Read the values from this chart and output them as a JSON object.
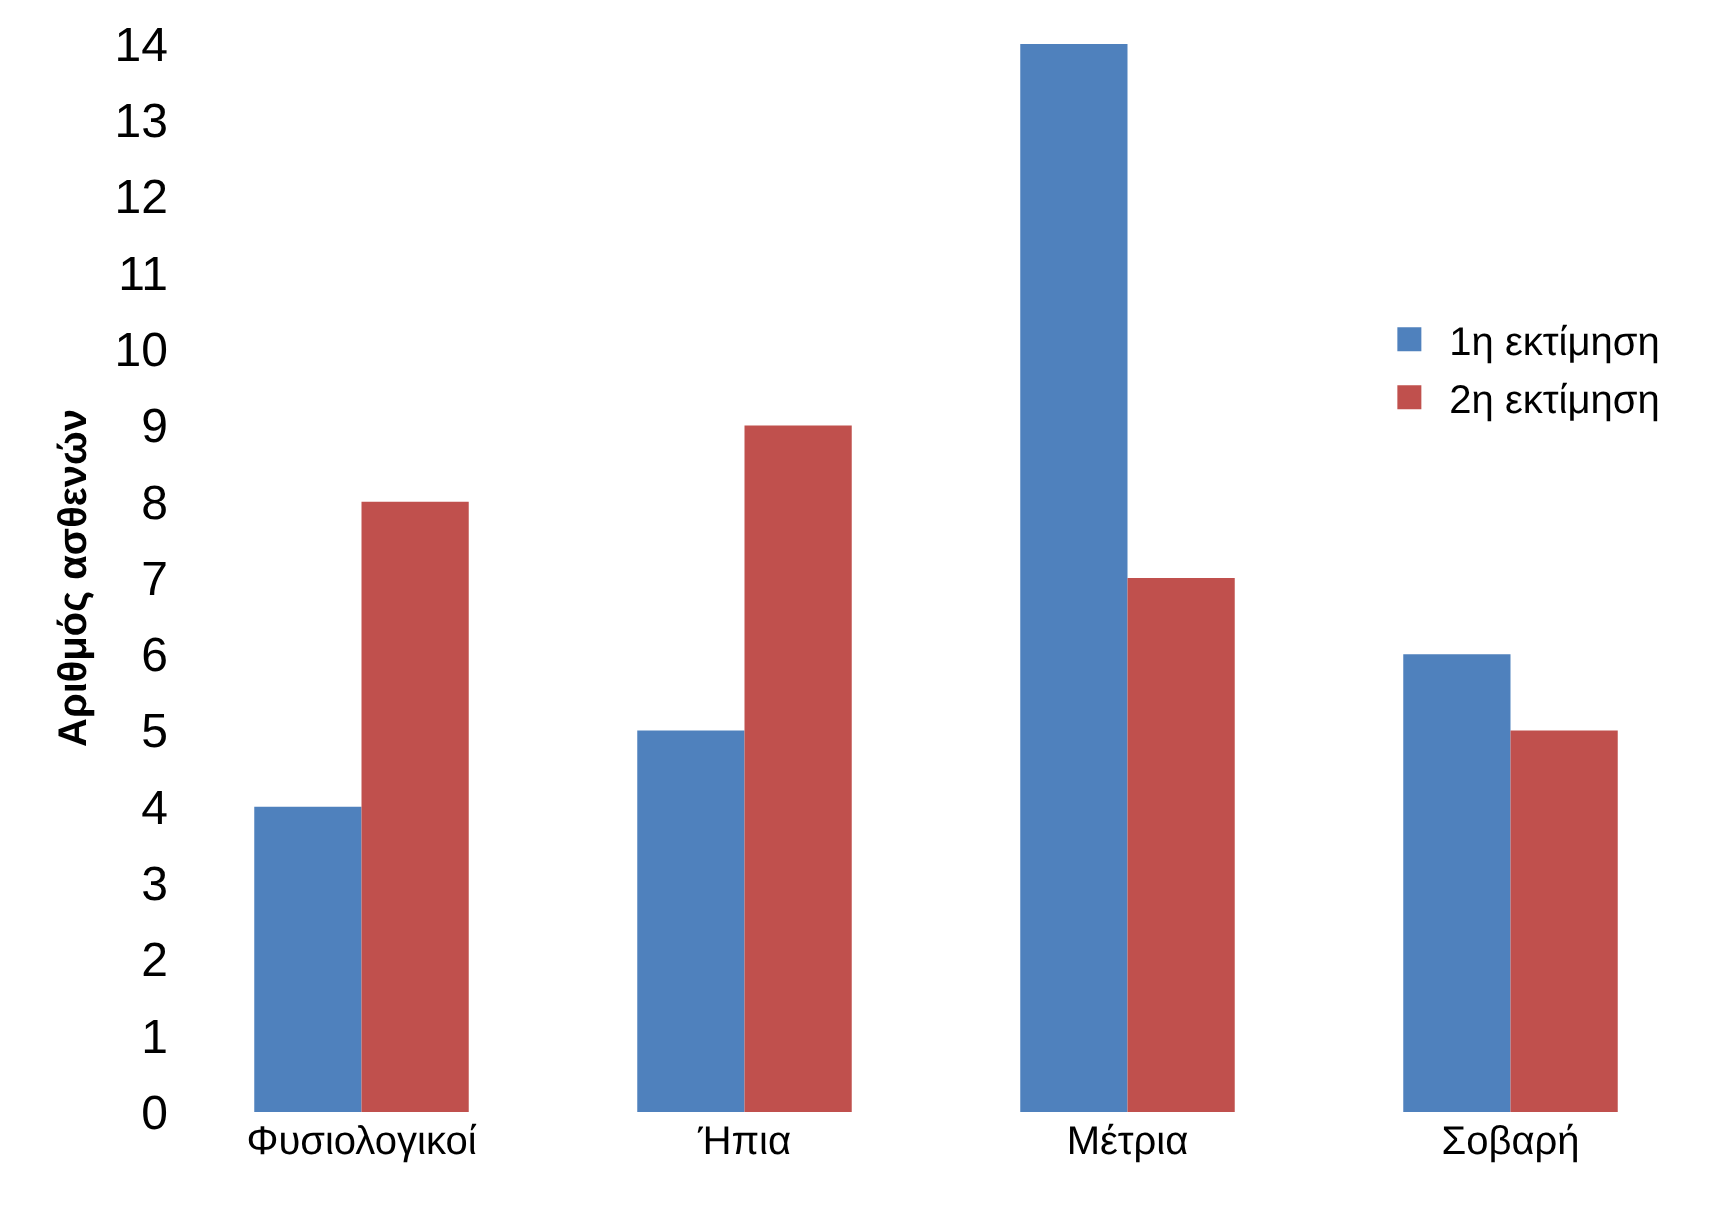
{
  "chart_data": {
    "type": "bar",
    "ylabel": "Αριθμός ασθενών",
    "categories": [
      "Φυσιολογικοί",
      "Ήπια",
      "Μέτρια",
      "Σοβαρή"
    ],
    "series": [
      {
        "name": "1η εκτίμηση",
        "color": "#4f81bd",
        "values": [
          4,
          5,
          14,
          6
        ]
      },
      {
        "name": "2η εκτίμηση",
        "color": "#c0504d",
        "values": [
          8,
          9,
          7,
          5
        ]
      }
    ],
    "ylim": [
      0,
      14
    ],
    "yticks": [
      0,
      1,
      2,
      3,
      4,
      5,
      6,
      7,
      8,
      9,
      10,
      11,
      12,
      13,
      14
    ],
    "grid": false,
    "legend": "right"
  }
}
